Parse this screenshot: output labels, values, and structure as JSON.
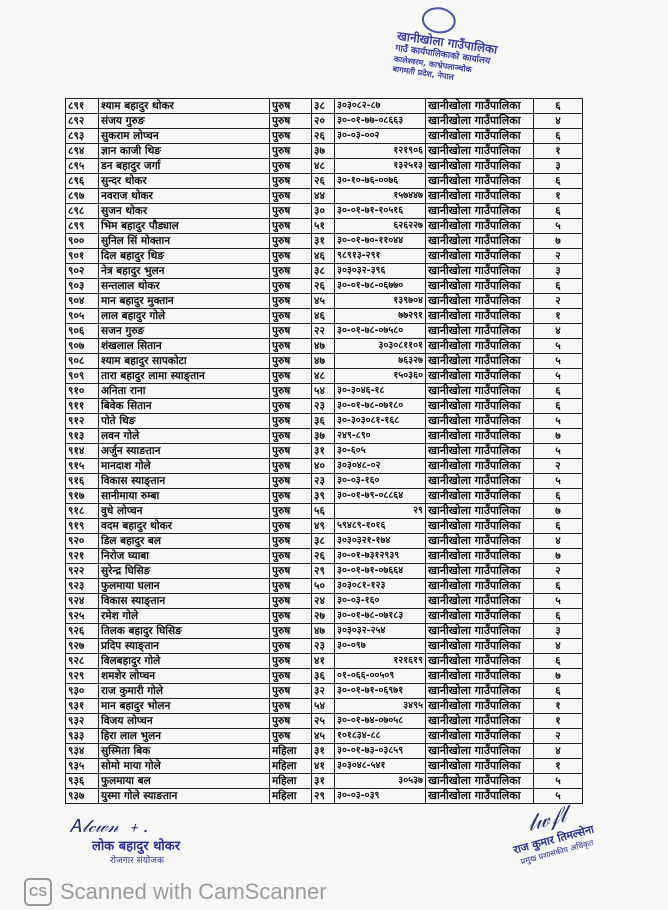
{
  "stamp": {
    "lines": [
      "खानीखोला गाउँपालिका",
      "गाउँ कार्यपालिकाको कार्यालय",
      "कालेश्वरम, काभ्रेपलाञ्चोक",
      "बागमती प्रदेश, नेपाल"
    ],
    "color": "#3a3fa8"
  },
  "columns": [
    "number",
    "name",
    "gender",
    "age",
    "id",
    "municipality",
    "ward"
  ],
  "rows": [
    [
      "८९१",
      "श्याम बहादुर थोकर",
      "पुरुष",
      "३८",
      "३०३०८२-८७",
      "खानीखोला गाउँपालिका",
      "६"
    ],
    [
      "८९२",
      "संजय गुरुङ",
      "पुरुष",
      "२०",
      "३०-०१-७७-०८६६३",
      "खानीखोला गाउँपालिका",
      "४"
    ],
    [
      "८९३",
      "सुकराम लोप्चन",
      "पुरुष",
      "२६",
      "३०-०३-००२",
      "खानीखोला गाउँपालिका",
      "६"
    ],
    [
      "८९४",
      "ज्ञान काजी थिङ",
      "पुरुष",
      "३७",
      "१२१९०६",
      "खानीखोला गाउँपालिका",
      "१"
    ],
    [
      "८९५",
      "डन बहादुर जर्गा",
      "पुरुष",
      "४८",
      "१३२५१३",
      "खानीखोला गाउँपालिका",
      "३"
    ],
    [
      "८९६",
      "सुन्दर थोकर",
      "पुरुष",
      "२६",
      "३०-१०-७६-००७६",
      "खानीखोला गाउँपालिका",
      "६"
    ],
    [
      "८९७",
      "नवराज थोकर",
      "पुरुष",
      "४४",
      "१५७४४७",
      "खानीखोला गाउँपालिका",
      "१"
    ],
    [
      "८९८",
      "सुजन थोकर",
      "पुरुष",
      "३०",
      "३०-०१-७१-१०५१६",
      "खानीखोला गाउँपालिका",
      "६"
    ],
    [
      "८९९",
      "भिम बहादुर पौड्याल",
      "पुरुष",
      "५१",
      "६२६२२७",
      "खानीखोला गाउँपालिका",
      "५"
    ],
    [
      "९००",
      "सुनिल सिं मोक्तान",
      "पुरुष",
      "३१",
      "३०-०१-७०-११०४४",
      "खानीखोला गाउँपालिका",
      "७"
    ],
    [
      "९०१",
      "दिल बहादुर थिङ",
      "पुरुष",
      "४६",
      "९८९१३-२९१",
      "खानीखोला गाउँपालिका",
      "२"
    ],
    [
      "९०२",
      "नेत्र बहादुर भुलन",
      "पुरुष",
      "३८",
      "३०३०३२-३९६",
      "खानीखोला गाउँपालिका",
      "३"
    ],
    [
      "९०३",
      "सन्तलाल थोकर",
      "पुरुष",
      "२६",
      "३०-०१-७८-०६७७०",
      "खानीखोला गाउँपालिका",
      "६"
    ],
    [
      "९०४",
      "मान बहादुर मुक्तान",
      "पुरुष",
      "४५",
      "१३९७०४",
      "खानीखोला गाउँपालिका",
      "२"
    ],
    [
      "९०५",
      "लाल बहादुर गोले",
      "पुरुष",
      "४६",
      "७७२९१",
      "खानीखोला गाउँपालिका",
      "१"
    ],
    [
      "९०६",
      "सजन गुरुङ",
      "पुरुष",
      "२२",
      "३०-०१-७८-०७५८०",
      "खानीखोला गाउँपालिका",
      "४"
    ],
    [
      "९०७",
      "शंखलाल सितान",
      "पुरुष",
      "४७",
      "३०३०८११०१",
      "खानीखोला गाउँपालिका",
      "५"
    ],
    [
      "९०८",
      "श्याम बहादुर सापकोटा",
      "पुरुष",
      "४७",
      "७६३२७",
      "खानीखोला गाउँपालिका",
      "५"
    ],
    [
      "९०९",
      "तारा बहादुर लामा स्याङ्तान",
      "पुरुष",
      "४८",
      "१५०३६०",
      "खानीखोला गाउँपालिका",
      "५"
    ],
    [
      "९१०",
      "अनिता राना",
      "पुरुष",
      "५४",
      "३०-३०४६-१८",
      "खानीखोला गाउँपालिका",
      "६"
    ],
    [
      "९११",
      "बिवेक सितान",
      "पुरुष",
      "२३",
      "३०-०१-७८-०७१८०",
      "खानीखोला गाउँपालिका",
      "६"
    ],
    [
      "९१२",
      "पोते थिङ",
      "पुरुष",
      "३६",
      "३०-३०३०८१-१६८",
      "खानीखोला गाउँपालिका",
      "५"
    ],
    [
      "९१३",
      "लवन गोले",
      "पुरुष",
      "३७",
      "२४९-८९०",
      "खानीखोला गाउँपालिका",
      "७"
    ],
    [
      "९१४",
      "अर्जुन स्याङतान",
      "पुरुष",
      "३१",
      "३०-६०५",
      "खानीखोला गाउँपालिका",
      "५"
    ],
    [
      "९१५",
      "मानदाश गोले",
      "पुरुष",
      "४०",
      "३०३०४८-०२",
      "खानीखोला गाउँपालिका",
      "२"
    ],
    [
      "९१६",
      "विकास स्याङ्तान",
      "पुरुष",
      "२३",
      "३०-०३-१६०",
      "खानीखोला गाउँपालिका",
      "५"
    ],
    [
      "९१७",
      "सानीमाया रुम्बा",
      "पुरुष",
      "३९",
      "३०-०१-७९-०८८६४",
      "खानीखोला गाउँपालिका",
      "६"
    ],
    [
      "९१८",
      "वुधे लोप्चन",
      "पुरुष",
      "५६",
      "२९",
      "खानीखोला गाउँपालिका",
      "७"
    ],
    [
      "९१९",
      "वदम बहादुर थोकर",
      "पुरुष",
      "४९",
      "५९४८९-१०१६",
      "खानीखोला गाउँपालिका",
      "६"
    ],
    [
      "९२०",
      "डिल बहादुर बल",
      "पुरुष",
      "३८",
      "३०३०३२१-१७४",
      "खानीखोला गाउँपालिका",
      "४"
    ],
    [
      "९२१",
      "निरोज घ्याबा",
      "पुरुष",
      "२६",
      "३०-०१-७३१२९३९",
      "खानीखोला गाउँपालिका",
      "७"
    ],
    [
      "९२२",
      "सुरेन्द्र घिसिङ",
      "पुरुष",
      "२९",
      "३०-०१-७१-०७६६४",
      "खानीखोला गाउँपालिका",
      "२"
    ],
    [
      "९२३",
      "फुलमाया घलान",
      "पुरुष",
      "५०",
      "३०३०८१-१२३",
      "खानीखोला गाउँपालिका",
      "६"
    ],
    [
      "९२४",
      "विकास स्याङ्तान",
      "पुरुष",
      "२४",
      "३०-०३-१६०",
      "खानीखोला गाउँपालिका",
      "५"
    ],
    [
      "९२५",
      "रमेश गोले",
      "पुरुष",
      "२७",
      "३०-०१-७८-०७१८३",
      "खानीखोला गाउँपालिका",
      "६"
    ],
    [
      "९२६",
      "तिलक बहादुर घिसिङ",
      "पुरुष",
      "४७",
      "३०३०३२-२५४",
      "खानीखोला गाउँपालिका",
      "३"
    ],
    [
      "९२७",
      "प्रदिप स्याङ्तान",
      "पुरुष",
      "२३",
      "३०-०९७",
      "खानीखोला गाउँपालिका",
      "४"
    ],
    [
      "९२८",
      "विलबहादुर गोले",
      "पुरुष",
      "४१",
      "१२१६१९",
      "खानीखोला गाउँपालिका",
      "६"
    ],
    [
      "९२९",
      "शमशेर लोप्चन",
      "पुरुष",
      "३६",
      "०१-०६६-००५०९",
      "खानीखोला गाउँपालिका",
      "७"
    ],
    [
      "९३०",
      "राज कुमारी गोले",
      "पुरुष",
      "३२",
      "३०-०१-७१-०६९७१",
      "खानीखोला गाउँपालिका",
      "६"
    ],
    [
      "९३१",
      "मान बहादुर भोलन",
      "पुरुष",
      "५४",
      "३४९५",
      "खानीखोला गाउँपालिका",
      "१"
    ],
    [
      "९३२",
      "विजय लोप्चन",
      "पुरुष",
      "२५",
      "३०-०१-७४-०७०५८",
      "खानीखोला गाउँपालिका",
      "१"
    ],
    [
      "९३३",
      "हिरा लाल भुलन",
      "पुरुष",
      "४५",
      "१०१८३४-८८",
      "खानीखोला गाउँपालिका",
      "२"
    ],
    [
      "९३४",
      "सुस्मिता बिक",
      "महिला",
      "३१",
      "३०-०१-७३-०३८५९",
      "खानीखोला गाउँपालिका",
      "४"
    ],
    [
      "९३५",
      "सोमो माया गोले",
      "महिला",
      "४१",
      "३०३०४८-५४१",
      "खानीखोला गाउँपालिका",
      "१"
    ],
    [
      "९३६",
      "फुलमाया बल",
      "महिला",
      "३१",
      "३०५३७",
      "खानीखोला गाउँपालिका",
      "५"
    ],
    [
      "९३७",
      "युस्मा गोले स्याङतान",
      "महिला",
      "२९",
      "३०-०३-०३९",
      "खानीखोला गाउँपालिका",
      "५"
    ]
  ],
  "signatures": {
    "left": {
      "name": "लोक बहादुर थोकर",
      "title": "रोजगार संयोजक"
    },
    "right": {
      "name": "राज कुमार तिमल्सेना",
      "title": "प्रमुख प्रशासकीय अधिकृत"
    }
  },
  "watermark": {
    "logo": "CS",
    "text": "Scanned with CamScanner"
  }
}
